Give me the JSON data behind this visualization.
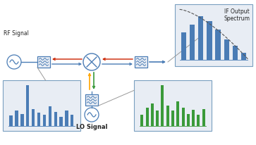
{
  "bg_color": "#ffffff",
  "rf_label": "RF Signal",
  "lo_label": "LO Signal",
  "if_label": "IF Output\nSpectrum",
  "blue": "#4A7CB5",
  "green": "#3A9A3A",
  "red": "#CC2200",
  "orange": "#FFA500",
  "box_bg": "#E8EDF4",
  "box_edge": "#7AA0C0",
  "gray_line": "#999999",
  "text_color": "#222222",
  "rf_bars": [
    0.25,
    0.38,
    0.3,
    1.0,
    0.42,
    0.32,
    0.28,
    0.48,
    0.35,
    0.22,
    0.38,
    0.28
  ],
  "green_bars": [
    0.28,
    0.45,
    0.55,
    0.38,
    1.0,
    0.5,
    0.38,
    0.6,
    0.45,
    0.3,
    0.4,
    0.28,
    0.42
  ],
  "if_bars": [
    0.55,
    0.72,
    0.88,
    0.78,
    0.62,
    0.42,
    0.28,
    0.15
  ],
  "label_fs": 5.5,
  "lo_fs": 6.0
}
